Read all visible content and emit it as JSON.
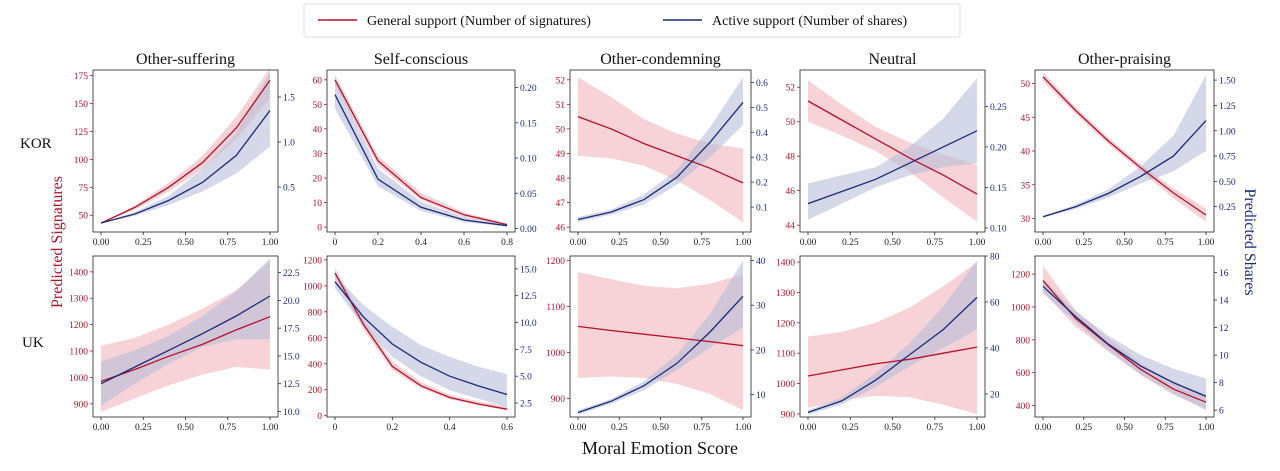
{
  "colors": {
    "general": "#b5122a",
    "general_band": "#f4c0c6",
    "active": "#1a2a7a",
    "active_band": "#b8bed9"
  },
  "legend": {
    "general_label": "General support (Number of signatures)",
    "active_label": "Active support (Number of shares)"
  },
  "labels": {
    "xlabel": "Moral Emotion Score",
    "ylabel_left": "Predicted Signatures",
    "ylabel_right": "Predicted Shares",
    "rows": [
      "KOR",
      "UK"
    ]
  },
  "chart_data": [
    {
      "type": "line",
      "country": "KOR",
      "title": "Other-suffering",
      "xlim": [
        0,
        1
      ],
      "xticks": [
        0,
        0.25,
        0.5,
        0.75,
        1.0
      ],
      "xtick_labels": [
        "0.00",
        "0.25",
        "0.50",
        "0.75",
        "1.00"
      ],
      "left": {
        "name": "General support (Number of signatures)",
        "ylim": [
          35,
          180
        ],
        "ticks": [
          50,
          75,
          100,
          125,
          150,
          175
        ],
        "x": [
          0,
          0.2,
          0.4,
          0.6,
          0.8,
          1.0
        ],
        "y": [
          43,
          57,
          75,
          97,
          128,
          171
        ],
        "lo": [
          43,
          55,
          71,
          91,
          118,
          155
        ],
        "hi": [
          43,
          59,
          79,
          103,
          138,
          182
        ]
      },
      "right": {
        "name": "Active support (Number of shares)",
        "ylim": [
          0.0,
          1.8
        ],
        "ticks": [
          0.5,
          1.0,
          1.5
        ],
        "tick_labels": [
          "0.5",
          "1.0",
          "1.5"
        ],
        "x": [
          0,
          0.2,
          0.4,
          0.6,
          0.8,
          1.0
        ],
        "y": [
          0.1,
          0.2,
          0.35,
          0.55,
          0.85,
          1.35
        ],
        "lo": [
          0.1,
          0.18,
          0.3,
          0.45,
          0.65,
          0.95
        ],
        "hi": [
          0.1,
          0.22,
          0.4,
          0.7,
          1.1,
          1.78
        ]
      }
    },
    {
      "type": "line",
      "country": "KOR",
      "title": "Self-conscious",
      "xlim": [
        0,
        0.8
      ],
      "xticks": [
        0,
        0.2,
        0.4,
        0.6,
        0.8
      ],
      "xtick_labels": [
        "0",
        "0.2",
        "0.4",
        "0.6",
        "0.8"
      ],
      "left": {
        "name": "General support (Number of signatures)",
        "ylim": [
          -2,
          64
        ],
        "ticks": [
          0,
          10,
          20,
          30,
          40,
          50,
          60
        ],
        "x": [
          0,
          0.2,
          0.4,
          0.6,
          0.8
        ],
        "y": [
          60,
          27,
          12,
          5,
          1
        ],
        "lo": [
          58,
          25,
          11,
          4,
          0.8
        ],
        "hi": [
          62,
          29,
          14,
          6,
          1.5
        ]
      },
      "right": {
        "name": "Active support (Number of shares)",
        "ylim": [
          -0.005,
          0.225
        ],
        "ticks": [
          0,
          0.05,
          0.1,
          0.15,
          0.2
        ],
        "tick_labels": [
          "0.00",
          "0.05",
          "0.10",
          "0.15",
          "0.20"
        ],
        "x": [
          0,
          0.2,
          0.4,
          0.6,
          0.8
        ],
        "y": [
          0.19,
          0.07,
          0.03,
          0.012,
          0.004
        ],
        "lo": [
          0.17,
          0.06,
          0.025,
          0.009,
          0.003
        ],
        "hi": [
          0.21,
          0.085,
          0.038,
          0.016,
          0.006
        ]
      }
    },
    {
      "type": "line",
      "country": "KOR",
      "title": "Other-condemning",
      "xlim": [
        0,
        1
      ],
      "xticks": [
        0,
        0.25,
        0.5,
        0.75,
        1.0
      ],
      "xtick_labels": [
        "0.00",
        "0.25",
        "0.50",
        "0.75",
        "1.00"
      ],
      "left": {
        "name": "General support (Number of signatures)",
        "ylim": [
          45.8,
          52.4
        ],
        "ticks": [
          46,
          47,
          48,
          49,
          50,
          51,
          52
        ],
        "x": [
          0,
          0.2,
          0.4,
          0.6,
          0.8,
          1.0
        ],
        "y": [
          50.5,
          50.0,
          49.4,
          48.9,
          48.4,
          47.8
        ],
        "lo": [
          48.9,
          48.8,
          48.5,
          47.9,
          47.1,
          46.2
        ],
        "hi": [
          52.1,
          51.3,
          50.4,
          49.8,
          49.4,
          49.2
        ]
      },
      "right": {
        "name": "Active support (Number of shares)",
        "ylim": [
          0.0,
          0.65
        ],
        "ticks": [
          0.1,
          0.2,
          0.3,
          0.4,
          0.5,
          0.6
        ],
        "tick_labels": [
          "0.1",
          "0.2",
          "0.3",
          "0.4",
          "0.5",
          "0.6"
        ],
        "x": [
          0,
          0.2,
          0.4,
          0.6,
          0.8,
          1.0
        ],
        "y": [
          0.05,
          0.08,
          0.13,
          0.22,
          0.36,
          0.52
        ],
        "lo": [
          0.04,
          0.07,
          0.11,
          0.19,
          0.3,
          0.43
        ],
        "hi": [
          0.06,
          0.09,
          0.15,
          0.25,
          0.42,
          0.62
        ]
      }
    },
    {
      "type": "line",
      "country": "KOR",
      "title": "Neutral",
      "xlim": [
        0,
        1
      ],
      "xticks": [
        0,
        0.25,
        0.5,
        0.75,
        1.0
      ],
      "xtick_labels": [
        "0.00",
        "0.25",
        "0.50",
        "0.75",
        "1.00"
      ],
      "left": {
        "name": "General support (Number of signatures)",
        "ylim": [
          43.6,
          53.0
        ],
        "ticks": [
          44,
          46,
          48,
          50,
          52
        ],
        "x": [
          0,
          0.2,
          0.4,
          0.6,
          0.8,
          1.0
        ],
        "y": [
          51.2,
          50.1,
          49.0,
          47.9,
          46.9,
          45.8
        ],
        "lo": [
          50.0,
          49.2,
          48.3,
          47.1,
          45.6,
          44.2
        ],
        "hi": [
          52.4,
          51.0,
          49.7,
          48.8,
          48.1,
          47.5
        ]
      },
      "right": {
        "name": "Active support (Number of shares)",
        "ylim": [
          0.095,
          0.295
        ],
        "ticks": [
          0.1,
          0.15,
          0.2,
          0.25
        ],
        "tick_labels": [
          "0.10",
          "0.15",
          "0.20",
          "0.25"
        ],
        "x": [
          0,
          0.2,
          0.4,
          0.6,
          0.8,
          1.0
        ],
        "y": [
          0.13,
          0.145,
          0.16,
          0.18,
          0.2,
          0.22
        ],
        "lo": [
          0.11,
          0.13,
          0.15,
          0.165,
          0.175,
          0.18
        ],
        "hi": [
          0.155,
          0.165,
          0.175,
          0.2,
          0.235,
          0.285
        ]
      }
    },
    {
      "type": "line",
      "country": "KOR",
      "title": "Other-praising",
      "xlim": [
        0,
        1
      ],
      "xticks": [
        0,
        0.25,
        0.5,
        0.75,
        1.0
      ],
      "xtick_labels": [
        "0.00",
        "0.25",
        "0.50",
        "0.75",
        "1.00"
      ],
      "left": {
        "name": "General support (Number of signatures)",
        "ylim": [
          28,
          52
        ],
        "ticks": [
          30,
          35,
          40,
          45,
          50
        ],
        "x": [
          0,
          0.2,
          0.4,
          0.6,
          0.8,
          1.0
        ],
        "y": [
          51,
          46,
          41.5,
          37.5,
          33.8,
          30.5
        ],
        "lo": [
          50.3,
          45.5,
          41,
          37,
          33,
          29.5
        ],
        "hi": [
          51.7,
          46.5,
          42,
          38,
          34.5,
          31.5
        ]
      },
      "right": {
        "name": "Active support (Number of shares)",
        "ylim": [
          0.0,
          1.6
        ],
        "ticks": [
          0.25,
          0.5,
          0.75,
          1.0,
          1.25,
          1.5
        ],
        "tick_labels": [
          "0.25",
          "0.50",
          "0.75",
          "1.00",
          "1.25",
          "1.50"
        ],
        "x": [
          0,
          0.2,
          0.4,
          0.6,
          0.8,
          1.0
        ],
        "y": [
          0.15,
          0.25,
          0.38,
          0.55,
          0.75,
          1.1
        ],
        "lo": [
          0.14,
          0.23,
          0.34,
          0.48,
          0.6,
          0.8
        ],
        "hi": [
          0.16,
          0.27,
          0.42,
          0.65,
          0.95,
          1.55
        ]
      }
    },
    {
      "type": "line",
      "country": "UK",
      "title": "Other-suffering",
      "xlim": [
        0,
        1
      ],
      "xticks": [
        0,
        0.25,
        0.5,
        0.75,
        1.0
      ],
      "xtick_labels": [
        "0.00",
        "0.25",
        "0.50",
        "0.75",
        "1.00"
      ],
      "left": {
        "name": "General support (Number of signatures)",
        "ylim": [
          850,
          1460
        ],
        "ticks": [
          900,
          1000,
          1100,
          1200,
          1300,
          1400
        ],
        "x": [
          0,
          0.2,
          0.4,
          0.6,
          0.8,
          1.0
        ],
        "y": [
          985,
          1030,
          1080,
          1125,
          1180,
          1230
        ],
        "lo": [
          870,
          920,
          970,
          1010,
          1040,
          1030
        ],
        "hi": [
          1120,
          1150,
          1200,
          1260,
          1330,
          1440
        ]
      },
      "right": {
        "name": "Active support (Number of shares)",
        "ylim": [
          9.5,
          24
        ],
        "ticks": [
          10,
          12.5,
          15,
          17.5,
          20,
          22.5
        ],
        "tick_labels": [
          "10.0",
          "12.5",
          "15.0",
          "17.5",
          "20.0",
          "22.5"
        ],
        "x": [
          0,
          0.2,
          0.4,
          0.6,
          0.8,
          1.0
        ],
        "y": [
          12.5,
          14,
          15.5,
          17,
          18.6,
          20.4
        ],
        "lo": [
          10.5,
          12.5,
          14.3,
          15.8,
          16.5,
          16.5
        ],
        "hi": [
          14.5,
          15.5,
          16.8,
          18.6,
          20.8,
          23.8
        ]
      }
    },
    {
      "type": "line",
      "country": "UK",
      "title": "Self-conscious",
      "xlim": [
        0,
        0.6
      ],
      "xticks": [
        0,
        0.2,
        0.4,
        0.6
      ],
      "xtick_labels": [
        "0",
        "0.2",
        "0.4",
        "0.6"
      ],
      "left": {
        "name": "General support (Number of signatures)",
        "ylim": [
          -10,
          1230
        ],
        "ticks": [
          0,
          200,
          400,
          600,
          800,
          1000,
          1200
        ],
        "x": [
          0,
          0.1,
          0.2,
          0.3,
          0.4,
          0.5,
          0.6
        ],
        "y": [
          1100,
          700,
          380,
          230,
          140,
          90,
          50
        ],
        "lo": [
          1060,
          660,
          350,
          210,
          125,
          80,
          40
        ],
        "hi": [
          1140,
          740,
          420,
          260,
          160,
          110,
          70
        ]
      },
      "right": {
        "name": "Active support (Number of shares)",
        "ylim": [
          1.2,
          16.2
        ],
        "ticks": [
          2.5,
          5,
          7.5,
          10,
          12.5,
          15
        ],
        "tick_labels": [
          "2.5",
          "5.0",
          "7.5",
          "10.0",
          "12.5",
          "15.0"
        ],
        "x": [
          0,
          0.1,
          0.2,
          0.3,
          0.4,
          0.5,
          0.6
        ],
        "y": [
          13.8,
          10.5,
          8.0,
          6.3,
          5.0,
          4.1,
          3.3
        ],
        "lo": [
          13.2,
          9.6,
          6.8,
          5.0,
          3.7,
          2.9,
          2.1
        ],
        "hi": [
          14.4,
          11.6,
          9.6,
          7.9,
          6.8,
          5.9,
          5.2
        ]
      }
    },
    {
      "type": "line",
      "country": "UK",
      "title": "Other-condemning",
      "xlim": [
        0,
        1
      ],
      "xticks": [
        0,
        0.25,
        0.5,
        0.75,
        1.0
      ],
      "xtick_labels": [
        "0.00",
        "0.25",
        "0.50",
        "0.75",
        "1.00"
      ],
      "left": {
        "name": "General support (Number of signatures)",
        "ylim": [
          860,
          1210
        ],
        "ticks": [
          900,
          1000,
          1100,
          1200
        ],
        "x": [
          0,
          0.2,
          0.4,
          0.6,
          0.8,
          1.0
        ],
        "y": [
          1057,
          1048,
          1040,
          1032,
          1024,
          1015
        ],
        "lo": [
          945,
          948,
          945,
          932,
          910,
          875
        ],
        "hi": [
          1175,
          1160,
          1145,
          1140,
          1150,
          1170
        ]
      },
      "right": {
        "name": "Active support (Number of shares)",
        "ylim": [
          5,
          41
        ],
        "ticks": [
          10,
          20,
          30,
          40
        ],
        "tick_labels": [
          "10",
          "20",
          "30",
          "40"
        ],
        "x": [
          0,
          0.2,
          0.4,
          0.6,
          0.8,
          1.0
        ],
        "y": [
          6,
          8.5,
          12,
          17,
          24,
          32
        ],
        "lo": [
          5.5,
          8,
          11,
          15.5,
          20.5,
          25
        ],
        "hi": [
          6.5,
          9,
          13,
          19,
          28,
          40
        ]
      }
    },
    {
      "type": "line",
      "country": "UK",
      "title": "Neutral",
      "xlim": [
        0,
        1
      ],
      "xticks": [
        0,
        0.25,
        0.5,
        0.75,
        1.0
      ],
      "xtick_labels": [
        "0.00",
        "0.25",
        "0.50",
        "0.75",
        "1.00"
      ],
      "left": {
        "name": "General support (Number of signatures)",
        "ylim": [
          890,
          1420
        ],
        "ticks": [
          900,
          1000,
          1100,
          1200,
          1300,
          1400
        ],
        "x": [
          0,
          0.2,
          0.4,
          0.6,
          0.8,
          1.0
        ],
        "y": [
          1025,
          1045,
          1065,
          1080,
          1100,
          1120
        ],
        "lo": [
          920,
          945,
          960,
          955,
          930,
          900
        ],
        "hi": [
          1155,
          1170,
          1200,
          1250,
          1320,
          1400
        ]
      },
      "right": {
        "name": "Active support (Number of shares)",
        "ylim": [
          10,
          80
        ],
        "ticks": [
          20,
          40,
          60,
          80
        ],
        "tick_labels": [
          "20",
          "40",
          "60",
          "80"
        ],
        "x": [
          0,
          0.2,
          0.4,
          0.6,
          0.8,
          1.0
        ],
        "y": [
          12,
          17,
          26,
          37,
          48,
          62
        ],
        "lo": [
          11,
          15.5,
          23,
          32,
          40,
          48
        ],
        "hi": [
          13,
          18.5,
          29,
          42,
          58,
          78
        ]
      }
    },
    {
      "type": "line",
      "country": "UK",
      "title": "Other-praising",
      "xlim": [
        0,
        1
      ],
      "xticks": [
        0,
        0.25,
        0.5,
        0.75,
        1.0
      ],
      "xtick_labels": [
        "0.00",
        "0.25",
        "0.50",
        "0.75",
        "1.00"
      ],
      "left": {
        "name": "General support (Number of signatures)",
        "ylim": [
          330,
          1310
        ],
        "ticks": [
          400,
          600,
          800,
          1000,
          1200
        ],
        "x": [
          0,
          0.2,
          0.4,
          0.6,
          0.8,
          1.0
        ],
        "y": [
          1160,
          930,
          770,
          620,
          500,
          420
        ],
        "lo": [
          1090,
          880,
          730,
          585,
          465,
          380
        ],
        "hi": [
          1250,
          980,
          810,
          660,
          540,
          470
        ]
      },
      "right": {
        "name": "Active support (Number of shares)",
        "ylim": [
          5.5,
          17.2
        ],
        "ticks": [
          6,
          8,
          10,
          12,
          14,
          16
        ],
        "tick_labels": [
          "6",
          "8",
          "10",
          "12",
          "14",
          "16"
        ],
        "x": [
          0,
          0.2,
          0.4,
          0.6,
          0.8,
          1.0
        ],
        "y": [
          15,
          12.8,
          10.8,
          9.2,
          8.0,
          7.0
        ],
        "lo": [
          14.5,
          12.4,
          10.3,
          8.6,
          7.2,
          6.0
        ],
        "hi": [
          15.5,
          13.2,
          11.4,
          10.0,
          9.0,
          8.3
        ]
      }
    }
  ]
}
